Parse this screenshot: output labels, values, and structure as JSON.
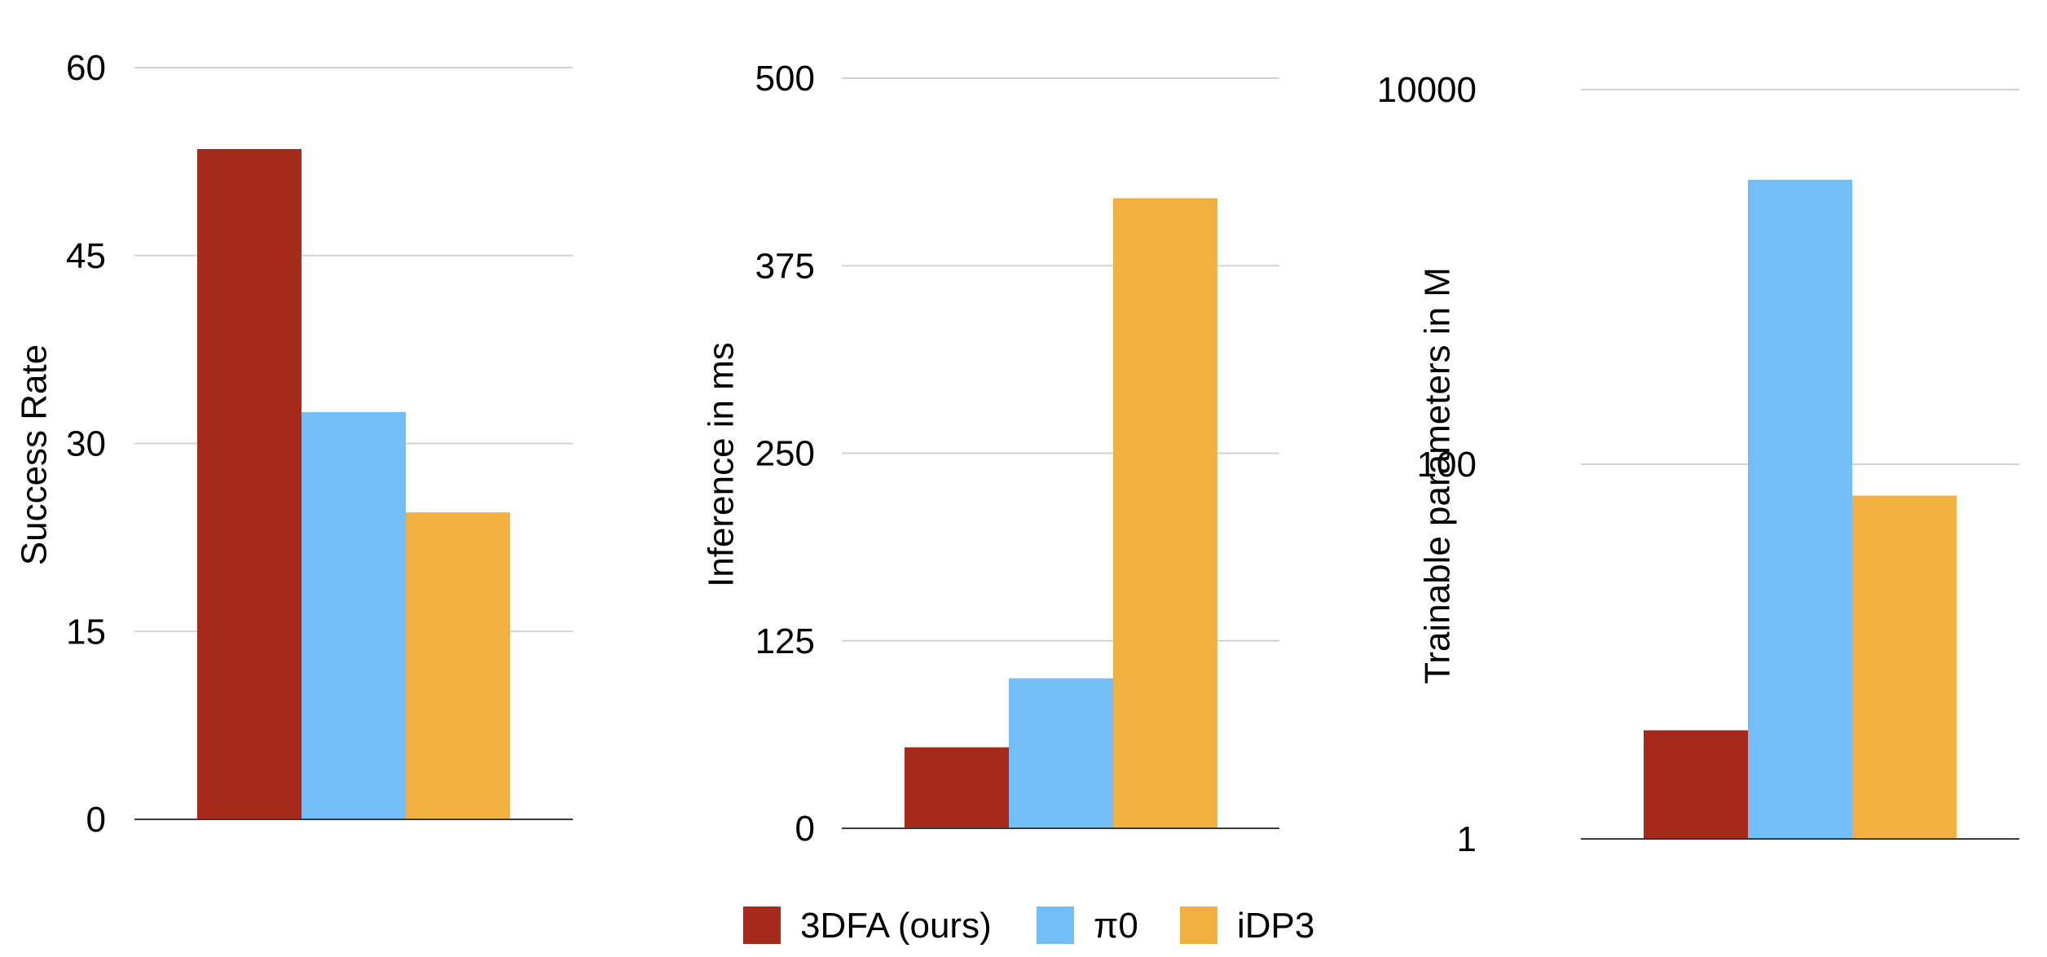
{
  "legend": {
    "position": "bottom-center",
    "items": [
      {
        "label": "3DFA (ours)",
        "color": "#a52a1b"
      },
      {
        "label": "π0",
        "color": "#74bef8"
      },
      {
        "label": "iDP3",
        "color": "#f2b040"
      }
    ]
  },
  "chart_data": [
    {
      "type": "bar",
      "title": "",
      "xlabel": "",
      "ylabel": "Success Rate",
      "ylim": [
        0,
        60
      ],
      "yticks": [
        "0",
        "15",
        "30",
        "45",
        "60"
      ],
      "yscale": "linear",
      "grid": true,
      "series": [
        {
          "name": "3DFA (ours)",
          "values": [
            53.5
          ]
        },
        {
          "name": "π0",
          "values": [
            32.5
          ]
        },
        {
          "name": "iDP3",
          "values": [
            24.5
          ]
        }
      ]
    },
    {
      "type": "bar",
      "title": "",
      "xlabel": "",
      "ylabel": "Inference in ms",
      "ylim": [
        0,
        500
      ],
      "yticks": [
        "0",
        "125",
        "250",
        "375",
        "500"
      ],
      "yscale": "linear",
      "grid": true,
      "series": [
        {
          "name": "3DFA (ours)",
          "values": [
            54
          ]
        },
        {
          "name": "π0",
          "values": [
            100
          ]
        },
        {
          "name": "iDP3",
          "values": [
            420
          ]
        }
      ]
    },
    {
      "type": "bar",
      "title": "",
      "xlabel": "",
      "ylabel": "Trainable parameters in M",
      "ylim": [
        1,
        10000
      ],
      "yticks": [
        "1",
        "100",
        "10000"
      ],
      "yscale": "log",
      "grid": true,
      "series": [
        {
          "name": "3DFA (ours)",
          "values": [
            3.8
          ]
        },
        {
          "name": "π0",
          "values": [
            3300
          ]
        },
        {
          "name": "iDP3",
          "values": [
            68
          ]
        }
      ]
    }
  ]
}
